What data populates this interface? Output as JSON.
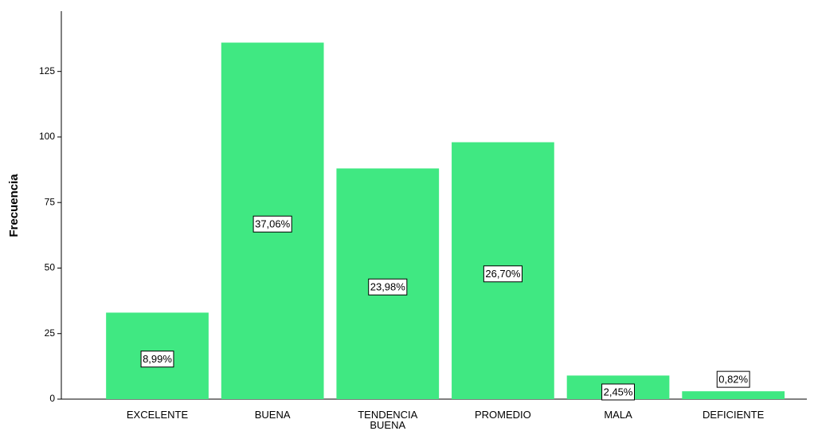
{
  "chart_data": {
    "type": "bar",
    "y_label": "Frecuencia",
    "categories": [
      "EXCELENTE",
      "BUENA",
      "TENDENCIA BUENA",
      "PROMEDIO",
      "MALA",
      "DEFICIENTE"
    ],
    "values": [
      33,
      136,
      88,
      98,
      9,
      3
    ],
    "data_labels": [
      "8,99%",
      "37,06%",
      "23,98%",
      "26,70%",
      "2,45%",
      "0,82%"
    ],
    "color": "#40e882",
    "ylim": [
      0,
      148
    ],
    "yticks": [
      0,
      25,
      50,
      75,
      100,
      125
    ],
    "grid": false
  }
}
